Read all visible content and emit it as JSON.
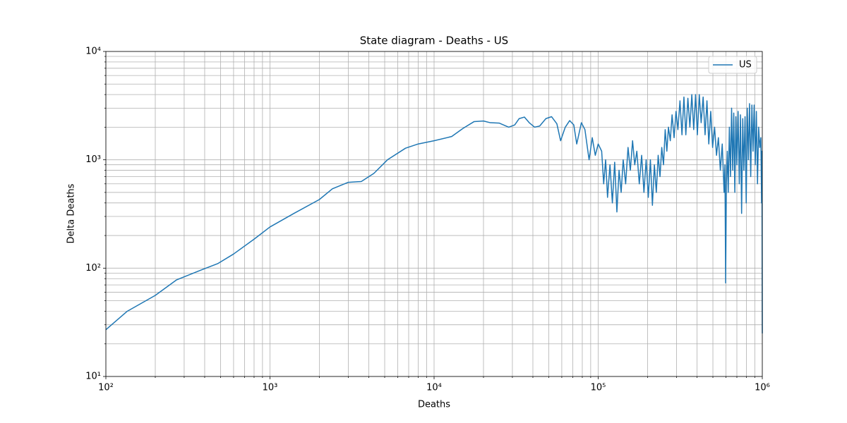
{
  "chart_data": {
    "type": "line",
    "title": "State diagram - Deaths - US",
    "xlabel": "Deaths",
    "ylabel": "Delta Deaths",
    "xscale": "log",
    "yscale": "log",
    "grid": "both",
    "legend": "upper right",
    "xlim": [
      100,
      1000000
    ],
    "xticks": [
      {
        "value": 100,
        "label": "10²"
      },
      {
        "value": 1000,
        "label": "10³"
      },
      {
        "value": 10000,
        "label": "10⁴"
      },
      {
        "value": 100000,
        "label": "10⁵"
      },
      {
        "value": 1000000,
        "label": "10⁶"
      }
    ],
    "ylim": [
      10,
      10000
    ],
    "yticks": [
      {
        "value": 10,
        "label": "10¹"
      },
      {
        "value": 100,
        "label": "10²"
      },
      {
        "value": 1000,
        "label": "10³"
      },
      {
        "value": 10000,
        "label": "10⁴"
      }
    ],
    "x": [
      100,
      135,
      200,
      270,
      380,
      480,
      600,
      800,
      1000,
      1400,
      2000,
      2400,
      3000,
      3600,
      4300,
      5200,
      6700,
      8000,
      10000,
      12800,
      15000,
      17500,
      20000,
      22000,
      25000,
      28500,
      31000,
      33000,
      35500,
      38000,
      41000,
      44000,
      48000,
      52000,
      56000,
      59000,
      63000,
      67000,
      71000,
      74000,
      79000,
      83000,
      88000,
      92000,
      96000,
      100000,
      105000,
      108000,
      111000,
      114000,
      118000,
      122000,
      126000,
      130000,
      134000,
      138000,
      142000,
      147000,
      152000,
      157000,
      162000,
      167000,
      172000,
      178000,
      184000,
      190000,
      196000,
      202000,
      208000,
      214000,
      220000,
      226000,
      232000,
      238000,
      244000,
      250000,
      256000,
      262000,
      268000,
      275000,
      282000,
      290000,
      298000,
      306000,
      315000,
      324000,
      333000,
      342000,
      352000,
      362000,
      372000,
      382000,
      392000,
      402000,
      413000,
      424000,
      436000,
      448000,
      460000,
      472000,
      485000,
      498000,
      512000,
      526000,
      540000,
      555000,
      570000,
      585000,
      592000,
      598000,
      604000,
      612000,
      620000,
      630000,
      640000,
      650000,
      660000,
      670000,
      680000,
      690000,
      700000,
      712000,
      724000,
      736000,
      748000,
      760000,
      772000,
      785000,
      798000,
      810000,
      823000,
      836000,
      850000,
      864000,
      878000,
      892000,
      906000,
      920000,
      935000,
      950000,
      965000,
      980000,
      990000,
      995000,
      1000000
    ],
    "series": [
      {
        "name": "US",
        "color": "#1f77b4",
        "values": [
          27,
          40,
          56,
          78,
          96,
          110,
          135,
          185,
          240,
          320,
          430,
          540,
          620,
          630,
          750,
          1000,
          1280,
          1400,
          1500,
          1640,
          1950,
          2250,
          2280,
          2200,
          2180,
          2000,
          2100,
          2400,
          2480,
          2200,
          2000,
          2050,
          2400,
          2500,
          2150,
          1500,
          2000,
          2300,
          2100,
          1400,
          2200,
          1900,
          1000,
          1600,
          1100,
          1400,
          1200,
          600,
          1000,
          450,
          900,
          400,
          950,
          330,
          800,
          500,
          1000,
          600,
          1300,
          800,
          1500,
          900,
          1200,
          600,
          1100,
          500,
          1000,
          450,
          1000,
          380,
          900,
          500,
          1100,
          700,
          1300,
          900,
          1900,
          1200,
          2000,
          1500,
          2600,
          1600,
          2800,
          1900,
          3500,
          1700,
          3800,
          1700,
          3700,
          2000,
          4000,
          1900,
          4000,
          1700,
          4000,
          2200,
          3800,
          1700,
          3500,
          1400,
          2800,
          1300,
          2000,
          1100,
          1600,
          800,
          1400,
          500,
          900,
          73,
          600,
          1200,
          500,
          2000,
          700,
          3000,
          800,
          2700,
          500,
          2500,
          900,
          2800,
          600,
          2600,
          320,
          2400,
          800,
          2500,
          400,
          3000,
          1000,
          3300,
          700,
          3200,
          1200,
          3200,
          900,
          2800,
          600,
          2000,
          1300,
          1600,
          400,
          1200,
          25
        ]
      }
    ]
  }
}
